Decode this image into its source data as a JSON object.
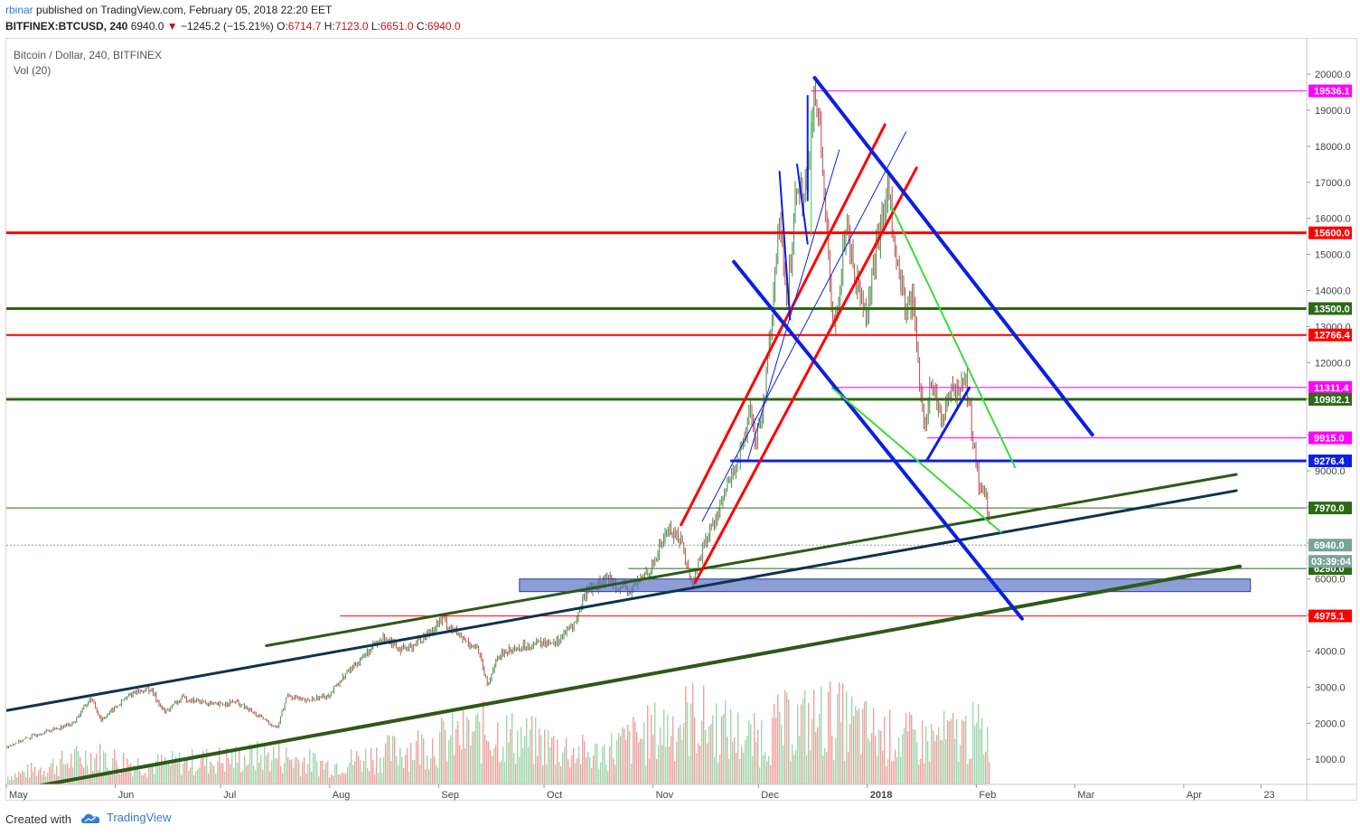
{
  "header": {
    "user": "rbinar",
    "published": " published on TradingView.com, February 05, 2018 22:20 EET",
    "symbol": "BITFINEX:BTCUSD, 240",
    "last": "6940.0",
    "change": "−1245.2 (−15.21%)",
    "o_label": "O:",
    "o": "6714.7",
    "h_label": "H:",
    "h": "7123.0",
    "l_label": "L:",
    "l": "6651.0",
    "c_label": "C:",
    "c": "6940.0"
  },
  "legend": {
    "title": "Bitcoin / Dollar, 240, BITFINEX",
    "indicator": "Vol (20)"
  },
  "footer": {
    "created_with": "Created with",
    "brand": "TradingView"
  },
  "colors": {
    "red": "#ff0000",
    "green_dark": "#2d6a15",
    "blue": "#0b1fe0",
    "magenta": "#ff00ff",
    "navy": "#0e3250",
    "lime": "#3adc3a",
    "zone": "#5c74c4",
    "candle_up": "#4a8a4a",
    "candle_down": "#b84a4a"
  },
  "chart_data": {
    "type": "line",
    "title": "Bitcoin / Dollar, 240, BITFINEX",
    "ylim": [
      0,
      21000
    ],
    "y_ticks": [
      "1000.0",
      "2000.0",
      "3000.0",
      "4000.0",
      "5000.0",
      "6000.0",
      "7000.0",
      "8000.0",
      "9000.0",
      "10000.0",
      "11000.0",
      "12000.0",
      "13000.0",
      "14000.0",
      "15000.0",
      "16000.0",
      "17000.0",
      "18000.0",
      "19000.0",
      "20000.0"
    ],
    "y_tick_values": [
      1000,
      2000,
      3000,
      4000,
      5000,
      6000,
      7000,
      8000,
      9000,
      10000,
      11000,
      12000,
      13000,
      14000,
      15000,
      16000,
      17000,
      18000,
      19000,
      20000
    ],
    "x_start": "2017-05-01",
    "x_end": "2018-05-06",
    "x_ticks": [
      {
        "label": "May",
        "date": "2017-05-01",
        "bold": false
      },
      {
        "label": "Jun",
        "date": "2017-06-01",
        "bold": false
      },
      {
        "label": "Jul",
        "date": "2017-07-01",
        "bold": false
      },
      {
        "label": "Aug",
        "date": "2017-08-01",
        "bold": false
      },
      {
        "label": "Sep",
        "date": "2017-09-01",
        "bold": false
      },
      {
        "label": "Oct",
        "date": "2017-10-01",
        "bold": false
      },
      {
        "label": "Nov",
        "date": "2017-11-01",
        "bold": false
      },
      {
        "label": "Dec",
        "date": "2017-12-01",
        "bold": false
      },
      {
        "label": "2018",
        "date": "2018-01-01",
        "bold": true
      },
      {
        "label": "Feb",
        "date": "2018-02-01",
        "bold": false
      },
      {
        "label": "Mar",
        "date": "2018-03-01",
        "bold": false
      },
      {
        "label": "Apr",
        "date": "2018-04-01",
        "bold": false
      },
      {
        "label": "23",
        "date": "2018-04-23",
        "bold": false
      }
    ],
    "price_series": {
      "name": "BTCUSD",
      "points": [
        [
          "2017-05-01",
          1350
        ],
        [
          "2017-05-10",
          1700
        ],
        [
          "2017-05-20",
          2000
        ],
        [
          "2017-05-25",
          2700
        ],
        [
          "2017-05-28",
          2100
        ],
        [
          "2017-06-06",
          2850
        ],
        [
          "2017-06-11",
          2950
        ],
        [
          "2017-06-15",
          2300
        ],
        [
          "2017-06-20",
          2700
        ],
        [
          "2017-06-30",
          2500
        ],
        [
          "2017-07-05",
          2600
        ],
        [
          "2017-07-15",
          2000
        ],
        [
          "2017-07-17",
          1850
        ],
        [
          "2017-07-20",
          2800
        ],
        [
          "2017-07-25",
          2600
        ],
        [
          "2017-08-01",
          2800
        ],
        [
          "2017-08-05",
          3300
        ],
        [
          "2017-08-12",
          4000
        ],
        [
          "2017-08-17",
          4400
        ],
        [
          "2017-08-22",
          4000
        ],
        [
          "2017-08-28",
          4400
        ],
        [
          "2017-09-02",
          4900
        ],
        [
          "2017-09-08",
          4300
        ],
        [
          "2017-09-12",
          4100
        ],
        [
          "2017-09-15",
          3000
        ],
        [
          "2017-09-17",
          3700
        ],
        [
          "2017-09-20",
          4000
        ],
        [
          "2017-09-28",
          4200
        ],
        [
          "2017-10-05",
          4300
        ],
        [
          "2017-10-10",
          4800
        ],
        [
          "2017-10-13",
          5700
        ],
        [
          "2017-10-20",
          6000
        ],
        [
          "2017-10-25",
          5600
        ],
        [
          "2017-11-01",
          6400
        ],
        [
          "2017-11-05",
          7400
        ],
        [
          "2017-11-09",
          7100
        ],
        [
          "2017-11-12",
          5800
        ],
        [
          "2017-11-15",
          6800
        ],
        [
          "2017-11-20",
          8000
        ],
        [
          "2017-11-26",
          9500
        ],
        [
          "2017-11-29",
          10700
        ],
        [
          "2017-11-30",
          9500
        ],
        [
          "2017-12-03",
          11300
        ],
        [
          "2017-12-07",
          16000
        ],
        [
          "2017-12-09",
          13500
        ],
        [
          "2017-12-12",
          17200
        ],
        [
          "2017-12-14",
          16500
        ],
        [
          "2017-12-17",
          19500
        ],
        [
          "2017-12-19",
          18000
        ],
        [
          "2017-12-22",
          13000
        ],
        [
          "2017-12-24",
          14000
        ],
        [
          "2017-12-26",
          16000
        ],
        [
          "2017-12-29",
          14200
        ],
        [
          "2018-01-01",
          13500
        ],
        [
          "2018-01-04",
          15400
        ],
        [
          "2018-01-07",
          17000
        ],
        [
          "2018-01-09",
          14800
        ],
        [
          "2018-01-12",
          13600
        ],
        [
          "2018-01-14",
          13800
        ],
        [
          "2018-01-17",
          10000
        ],
        [
          "2018-01-19",
          11500
        ],
        [
          "2018-01-22",
          10500
        ],
        [
          "2018-01-25",
          11200
        ],
        [
          "2018-01-29",
          11500
        ],
        [
          "2018-01-31",
          10000
        ],
        [
          "2018-02-02",
          8500
        ],
        [
          "2018-02-04",
          8200
        ],
        [
          "2018-02-05",
          6940
        ]
      ]
    },
    "volume_series": {
      "name": "Vol (20)",
      "note": "volume histogram, relative scale 0-1",
      "points": [
        [
          "2017-05-01",
          0.08
        ],
        [
          "2017-05-25",
          0.3
        ],
        [
          "2017-06-10",
          0.2
        ],
        [
          "2017-07-16",
          0.3
        ],
        [
          "2017-08-01",
          0.2
        ],
        [
          "2017-09-15",
          0.55
        ],
        [
          "2017-10-15",
          0.3
        ],
        [
          "2017-11-12",
          0.7
        ],
        [
          "2017-11-29",
          0.45
        ],
        [
          "2017-12-07",
          0.6
        ],
        [
          "2017-12-22",
          0.7
        ],
        [
          "2018-01-05",
          0.5
        ],
        [
          "2018-01-17",
          0.45
        ],
        [
          "2018-02-02",
          0.55
        ],
        [
          "2018-02-05",
          0.45
        ]
      ]
    },
    "horizontal_levels": [
      {
        "name": "level-19536",
        "value": 19536.1,
        "label": "19536.1",
        "color": "#ff00ff",
        "width": 1,
        "from": "2017-12-16"
      },
      {
        "name": "level-15600",
        "value": 15600.0,
        "label": "15600.0",
        "color": "#ff0000",
        "width": 3,
        "from": "2017-05-01"
      },
      {
        "name": "level-13500",
        "value": 13500.0,
        "label": "13500.0",
        "color": "#2d6a15",
        "width": 3,
        "from": "2017-05-01"
      },
      {
        "name": "level-12766",
        "value": 12766.4,
        "label": "12766.4",
        "color": "#ff0000",
        "width": 2,
        "from": "2017-05-01"
      },
      {
        "name": "level-11311",
        "value": 11311.4,
        "label": "11311.4",
        "color": "#ff00ff",
        "width": 1,
        "from": "2017-12-22"
      },
      {
        "name": "level-10982",
        "value": 10982.1,
        "label": "10982.1",
        "color": "#2d6a15",
        "width": 3,
        "from": "2017-05-01"
      },
      {
        "name": "level-9915",
        "value": 9915.0,
        "label": "9915.0",
        "color": "#ff00ff",
        "width": 1,
        "from": "2018-01-18"
      },
      {
        "name": "level-9276",
        "value": 9276.4,
        "label": "9276.4",
        "color": "#0b1fe0",
        "width": 3,
        "from": "2017-11-23"
      },
      {
        "name": "level-7970",
        "value": 7970.0,
        "label": "7970.0",
        "color": "#2d6a15",
        "width": 1,
        "from": "2017-05-01"
      },
      {
        "name": "level-6940",
        "value": 6940.0,
        "label": "6940.0",
        "color": "#7aa39a",
        "width": 1,
        "from": "2017-05-01",
        "dashed": true
      },
      {
        "name": "level-6290",
        "value": 6290.0,
        "label": "6290.0",
        "color": "#2d6a15",
        "width": 1,
        "from": "2017-10-25"
      },
      {
        "name": "level-4975",
        "value": 4975.1,
        "label": "4975.1",
        "color": "#ff0000",
        "width": 1,
        "from": "2017-08-04"
      }
    ],
    "countdown": "03:39:04",
    "trend_lines": [
      {
        "name": "trend-navy-long",
        "color": "#0e3250",
        "width": 3,
        "from": [
          "2017-05-01",
          2350
        ],
        "to": [
          "2018-04-16",
          8450
        ]
      },
      {
        "name": "trend-green-upper",
        "color": "#2d5a18",
        "width": 3,
        "from": [
          "2017-07-14",
          4150
        ],
        "to": [
          "2018-04-16",
          8900
        ]
      },
      {
        "name": "trend-green-lower",
        "color": "#2d5a18",
        "width": 4,
        "from": [
          "2017-05-01",
          100
        ],
        "to": [
          "2018-04-17",
          6350
        ]
      },
      {
        "name": "trend-red-1",
        "color": "#ff0000",
        "width": 3,
        "from": [
          "2017-11-09",
          7500
        ],
        "to": [
          "2018-01-06",
          18600
        ]
      },
      {
        "name": "trend-red-2",
        "color": "#ff0000",
        "width": 3,
        "from": [
          "2017-11-13",
          5900
        ],
        "to": [
          "2018-01-15",
          17400
        ]
      },
      {
        "name": "trend-blue-thin-1",
        "color": "#0b1fe0",
        "width": 1,
        "from": [
          "2017-11-15",
          7600
        ],
        "to": [
          "2018-01-12",
          18400
        ]
      },
      {
        "name": "trend-blue-thin-2",
        "color": "#0b1fe0",
        "width": 1,
        "from": [
          "2017-11-28",
          9300
        ],
        "to": [
          "2017-12-24",
          17900
        ]
      },
      {
        "name": "trend-blue-main-upper",
        "color": "#0b1fe0",
        "width": 4,
        "from": [
          "2017-12-17",
          19900
        ],
        "to": [
          "2018-03-06",
          10000
        ]
      },
      {
        "name": "trend-blue-main-lower",
        "color": "#0b1fe0",
        "width": 4,
        "from": [
          "2017-11-24",
          14800
        ],
        "to": [
          "2018-02-14",
          4900
        ]
      },
      {
        "name": "trend-blue-small",
        "color": "#0b1fe0",
        "width": 3,
        "from": [
          "2018-01-18",
          9300
        ],
        "to": [
          "2018-01-30",
          11300
        ]
      },
      {
        "name": "trend-blue-spike-a",
        "color": "#0b1fe0",
        "width": 2,
        "from": [
          "2017-12-07",
          17300
        ],
        "to": [
          "2017-12-10",
          13200
        ]
      },
      {
        "name": "trend-blue-spike-b",
        "color": "#0b1fe0",
        "width": 2,
        "from": [
          "2017-12-12",
          17500
        ],
        "to": [
          "2017-12-15",
          15300
        ]
      },
      {
        "name": "trend-blue-spike-c",
        "color": "#0b1fe0",
        "width": 2,
        "from": [
          "2017-12-15",
          19400
        ],
        "to": [
          "2017-12-15",
          16500
        ]
      },
      {
        "name": "trend-lime-1",
        "color": "#3adc3a",
        "width": 2,
        "from": [
          "2018-01-08",
          16300
        ],
        "to": [
          "2018-02-12",
          9100
        ]
      },
      {
        "name": "trend-lime-2",
        "color": "#3adc3a",
        "width": 2,
        "from": [
          "2017-12-22",
          11300
        ],
        "to": [
          "2018-02-08",
          7300
        ]
      },
      {
        "name": "trend-lime-3",
        "color": "#3adc3a",
        "width": 1,
        "from": [
          "2017-12-16",
          19000
        ],
        "to": [
          "2017-12-16",
          15500
        ]
      }
    ],
    "zones": [
      {
        "name": "support-zone",
        "color": "#5c74c4",
        "from": [
          "2017-09-24",
          6000
        ],
        "to": [
          "2018-04-20",
          5650
        ]
      }
    ]
  }
}
